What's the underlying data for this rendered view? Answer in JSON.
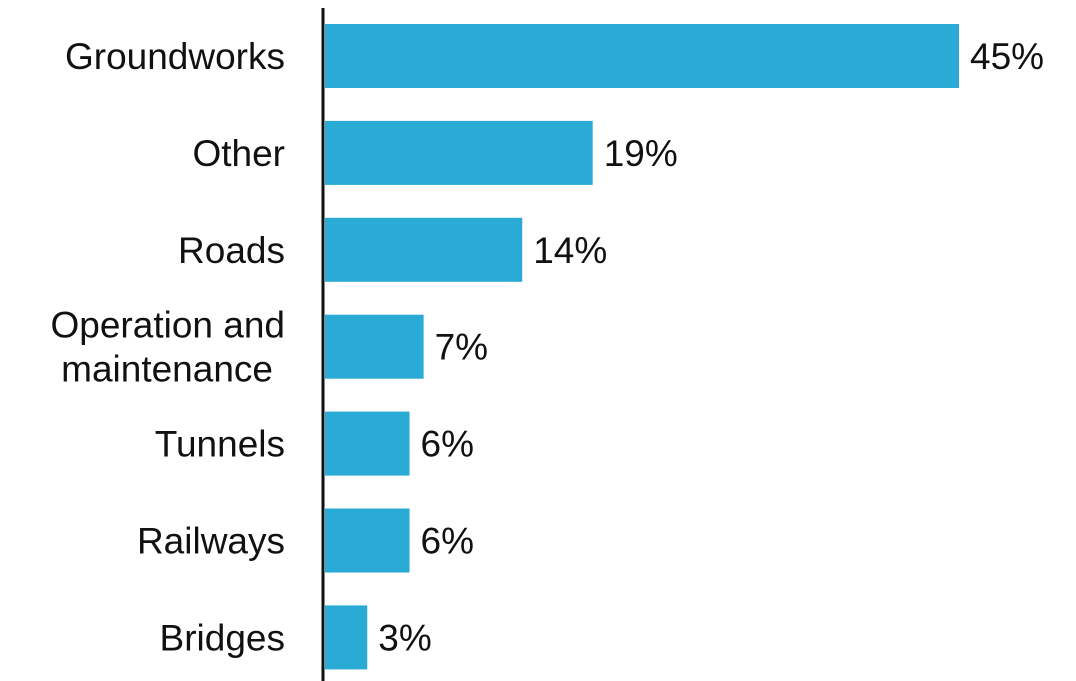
{
  "chart_data": {
    "type": "bar",
    "orientation": "horizontal",
    "categories": [
      "Groundworks",
      "Other",
      "Roads",
      "Operation and maintenance",
      "Tunnels",
      "Railways",
      "Bridges"
    ],
    "values": [
      45,
      19,
      14,
      7,
      6,
      6,
      3
    ],
    "data_labels": [
      "45%",
      "19%",
      "14%",
      "7%",
      "6%",
      "6%",
      "3%"
    ],
    "unit": "%",
    "title": "",
    "xlabel": "",
    "ylabel": "",
    "xlim": [
      0,
      45
    ],
    "grid": false,
    "legend": "none",
    "bar_color": "#29ABD6",
    "axis_color": "#111111"
  }
}
